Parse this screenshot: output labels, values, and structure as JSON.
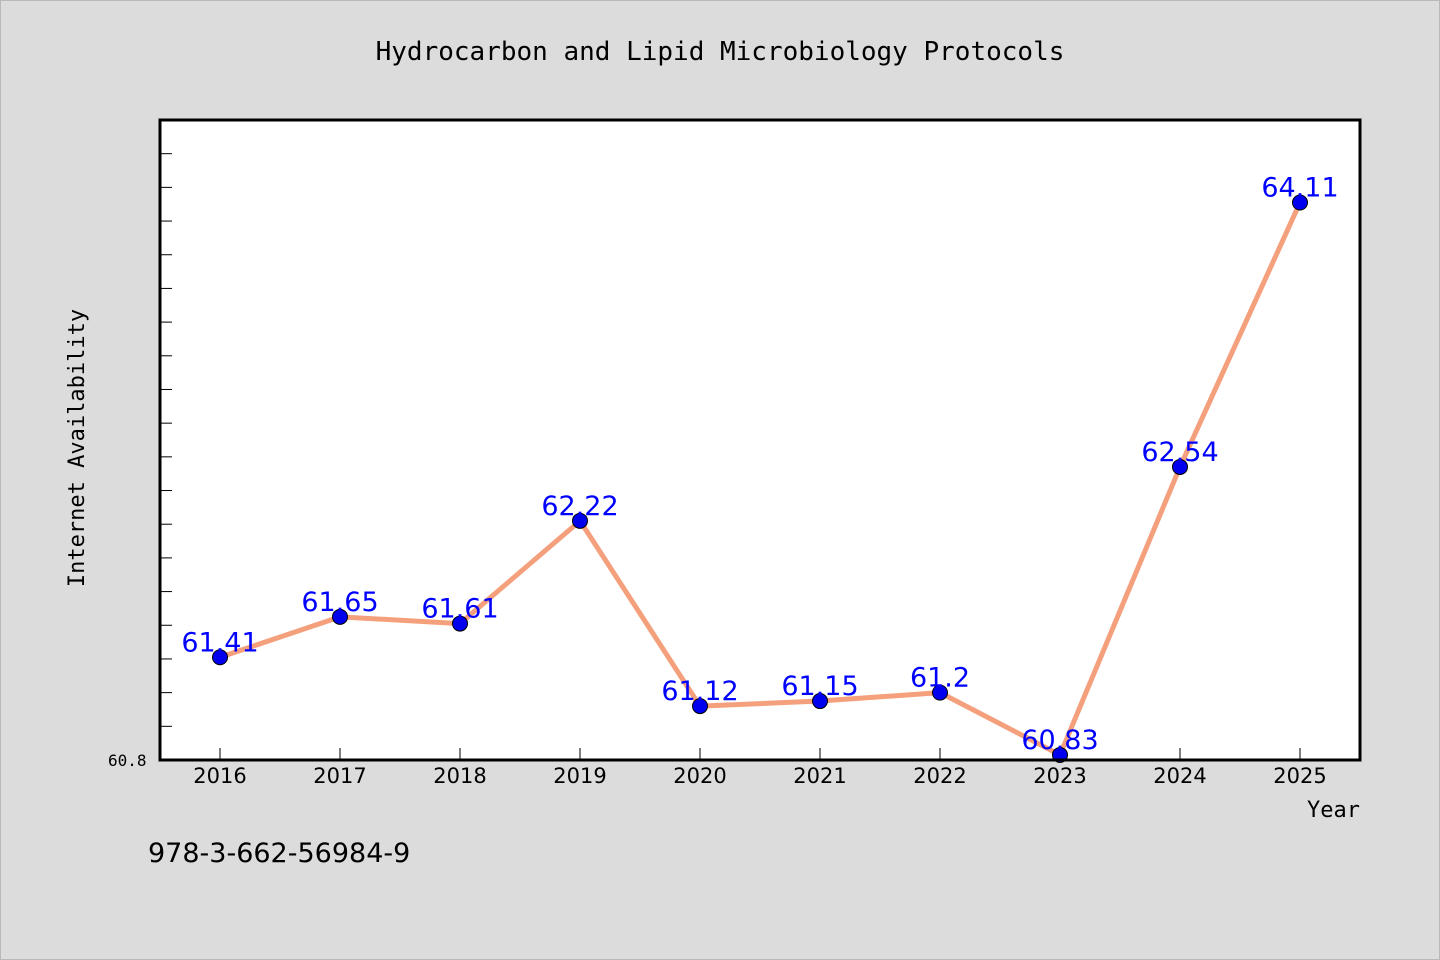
{
  "chart_data": {
    "type": "line",
    "title": "Hydrocarbon and Lipid Microbiology Protocols",
    "xlabel": "Year",
    "ylabel": "Internet Availability",
    "categories": [
      "2016",
      "2017",
      "2018",
      "2019",
      "2020",
      "2021",
      "2022",
      "2023",
      "2024",
      "2025"
    ],
    "series": [
      {
        "values": [
          61.41,
          61.65,
          61.61,
          62.22,
          61.12,
          61.15,
          61.2,
          60.83,
          62.54,
          64.11
        ],
        "data_labels": [
          "61.41",
          "61.65",
          "61.61",
          "62.22",
          "61.12",
          "61.15",
          "61.2",
          "60.83",
          "62.54",
          "64.11"
        ]
      }
    ],
    "ylim": [
      60.8,
      64.6
    ],
    "y_tick_label": "60.8",
    "grid": false,
    "legend": "none",
    "colors": {
      "line": "#f4a07c",
      "marker": "#0000ee",
      "data_label": "#0000ff",
      "plot_background": "#ffffff",
      "figure_background": "#dcdcdc"
    }
  },
  "footer": {
    "isbn": "978-3-662-56984-9"
  }
}
